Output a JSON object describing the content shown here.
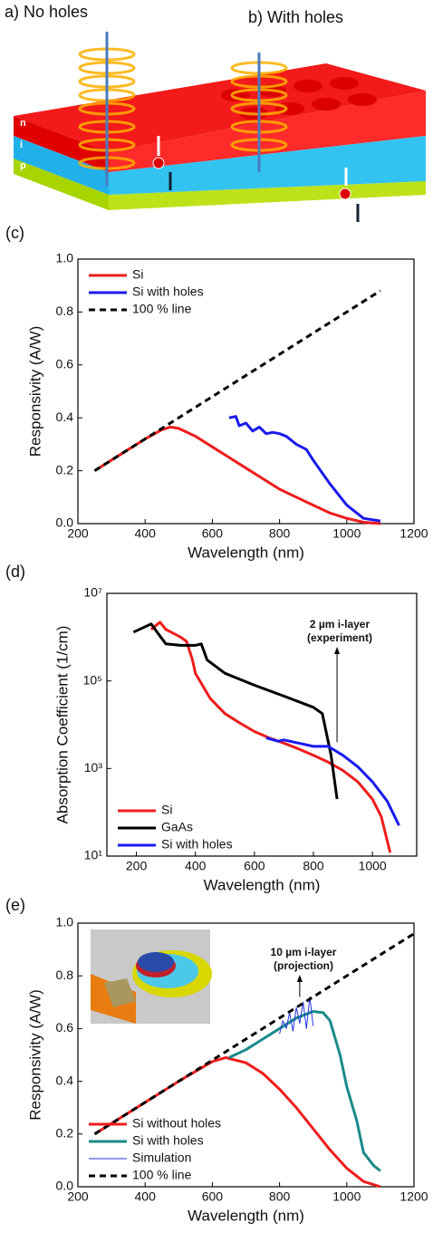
{
  "diagram": {
    "labels": [
      "a) No holes",
      "b) With holes"
    ],
    "layers": [
      "n",
      "i",
      "p"
    ]
  },
  "chart_data": [
    {
      "type": "line",
      "label": "(c)",
      "xlabel": "Wavelength (nm)",
      "ylabel": "Responsivity (A/W)",
      "xlim": [
        200,
        1200
      ],
      "ylim": [
        0,
        1
      ],
      "xticks": [
        200,
        400,
        600,
        800,
        1000,
        1200
      ],
      "yticks": [
        {
          "value": 0,
          "label": "0.0"
        },
        0.2,
        0.4,
        0.6,
        0.8,
        {
          "value": 1,
          "label": "1.0"
        }
      ],
      "legend": "upper left",
      "series": [
        {
          "name": "Si",
          "color": "#ee1c1c",
          "x": [
            250,
            300,
            350,
            400,
            450,
            475,
            500,
            550,
            600,
            650,
            700,
            750,
            800,
            850,
            900,
            950,
            1000,
            1050,
            1100
          ],
          "values": [
            0.2,
            0.24,
            0.28,
            0.32,
            0.355,
            0.365,
            0.36,
            0.33,
            0.29,
            0.25,
            0.21,
            0.17,
            0.13,
            0.1,
            0.07,
            0.04,
            0.02,
            0.005,
            0.0
          ]
        },
        {
          "name": "Si with holes",
          "color": "#1a1aee",
          "x": [
            650,
            670,
            680,
            700,
            720,
            740,
            760,
            780,
            800,
            820,
            850,
            880,
            900,
            950,
            1000,
            1050,
            1100
          ],
          "values": [
            0.4,
            0.405,
            0.37,
            0.38,
            0.35,
            0.365,
            0.34,
            0.345,
            0.34,
            0.33,
            0.3,
            0.28,
            0.24,
            0.15,
            0.07,
            0.02,
            0.01
          ]
        },
        {
          "name": "100 % line",
          "color": "#000000",
          "style": "dashed",
          "x": [
            250,
            1100
          ],
          "values": [
            0.2,
            0.88
          ]
        }
      ]
    },
    {
      "type": "line",
      "label": "(d)",
      "xlabel": "Wavelength (nm)",
      "ylabel": "Absorption Coefficient (1/cm)",
      "xlim": [
        100,
        1150
      ],
      "ylim": [
        10,
        10000000
      ],
      "log_y": true,
      "xticks": [
        200,
        400,
        600,
        800,
        1000
      ],
      "yticks": [
        {
          "value": 10,
          "label": "10¹"
        },
        {
          "value": 1000,
          "label": "10³"
        },
        {
          "value": 100000,
          "label": "10⁵"
        },
        {
          "value": 10000000,
          "label": "10⁷"
        }
      ],
      "legend": "lower left",
      "annotation": [
        "2 µm i-layer",
        "(experiment)"
      ],
      "series": [
        {
          "name": "Si",
          "color": "#ee1c1c",
          "x": [
            250,
            280,
            300,
            350,
            370,
            390,
            400,
            450,
            500,
            550,
            600,
            650,
            700,
            750,
            800,
            850,
            900,
            950,
            1000,
            1030,
            1060
          ],
          "values": [
            1500000,
            2200000,
            1500000,
            1000000,
            800000,
            300000,
            150000,
            40000,
            18000,
            11000,
            7000,
            5000,
            3800,
            2800,
            2000,
            1400,
            900,
            500,
            200,
            80,
            12
          ]
        },
        {
          "name": "GaAs",
          "color": "#000000",
          "x": [
            190,
            210,
            250,
            270,
            300,
            350,
            400,
            420,
            440,
            500,
            600,
            700,
            800,
            830,
            860,
            880
          ],
          "values": [
            1300000,
            1500000,
            2000000,
            1300000,
            700000,
            650000,
            650000,
            700000,
            300000,
            150000,
            80000,
            45000,
            25000,
            18000,
            2000,
            200
          ]
        },
        {
          "name": "Si with holes",
          "color": "#1a1aee",
          "x": [
            640,
            680,
            700,
            750,
            800,
            850,
            900,
            950,
            1000,
            1050,
            1090
          ],
          "values": [
            5000,
            4200,
            4500,
            3800,
            3200,
            3200,
            2000,
            1100,
            500,
            180,
            50
          ]
        }
      ]
    },
    {
      "type": "line",
      "label": "(e)",
      "xlabel": "Wavelength (nm)",
      "ylabel": "Responsivity (A/W)",
      "xlim": [
        200,
        1200
      ],
      "ylim": [
        0,
        1
      ],
      "xticks": [
        200,
        400,
        600,
        800,
        1000,
        1200
      ],
      "yticks": [
        {
          "value": 0,
          "label": "0.0"
        },
        0.2,
        0.4,
        0.6,
        0.8,
        {
          "value": 1,
          "label": "1.0"
        }
      ],
      "legend": "lower left",
      "annotation": [
        "10 µm i-layer",
        "(projection)"
      ],
      "series": [
        {
          "name": "Si without holes",
          "color": "#ee1c1c",
          "x": [
            250,
            400,
            500,
            600,
            640,
            700,
            750,
            800,
            850,
            900,
            950,
            1000,
            1050,
            1100
          ],
          "values": [
            0.2,
            0.32,
            0.4,
            0.475,
            0.49,
            0.47,
            0.43,
            0.37,
            0.3,
            0.22,
            0.14,
            0.07,
            0.02,
            0.0
          ]
        },
        {
          "name": "Si with holes",
          "color": "#1a8a8a",
          "x": [
            650,
            700,
            750,
            800,
            850,
            900,
            930,
            950,
            980,
            1000,
            1030,
            1050,
            1080,
            1100
          ],
          "values": [
            0.49,
            0.52,
            0.56,
            0.6,
            0.64,
            0.665,
            0.66,
            0.63,
            0.5,
            0.38,
            0.25,
            0.13,
            0.08,
            0.06
          ]
        },
        {
          "name": "Simulation",
          "color": "#2233dd",
          "style": "thin",
          "x": [
            800,
            810,
            820,
            830,
            840,
            850,
            860,
            870,
            880,
            890,
            900
          ],
          "values": [
            0.58,
            0.63,
            0.6,
            0.66,
            0.59,
            0.68,
            0.62,
            0.7,
            0.6,
            0.72,
            0.61
          ]
        },
        {
          "name": "100 % line",
          "color": "#000000",
          "style": "dashed",
          "x": [
            250,
            1200
          ],
          "values": [
            0.2,
            0.96
          ]
        }
      ]
    }
  ]
}
